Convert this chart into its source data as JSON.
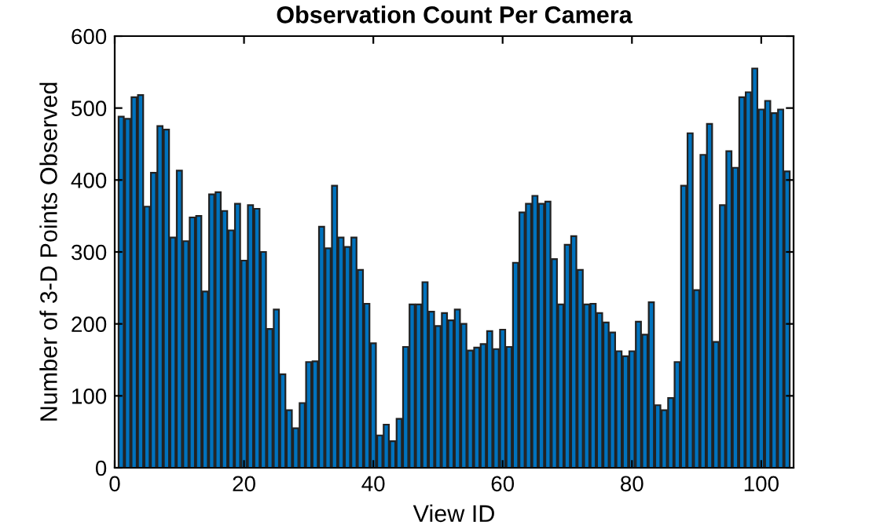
{
  "chart_data": {
    "type": "bar",
    "title": "Observation Count Per Camera",
    "xlabel": "View ID",
    "ylabel": "Number of 3-D Points Observed",
    "x": [
      1,
      2,
      3,
      4,
      5,
      6,
      7,
      8,
      9,
      10,
      11,
      12,
      13,
      14,
      15,
      16,
      17,
      18,
      19,
      20,
      21,
      22,
      23,
      24,
      25,
      26,
      27,
      28,
      29,
      30,
      31,
      32,
      33,
      34,
      35,
      36,
      37,
      38,
      39,
      40,
      41,
      42,
      43,
      44,
      45,
      46,
      47,
      48,
      49,
      50,
      51,
      52,
      53,
      54,
      55,
      56,
      57,
      58,
      59,
      60,
      61,
      62,
      63,
      64,
      65,
      66,
      67,
      68,
      69,
      70,
      71,
      72,
      73,
      74,
      75,
      76,
      77,
      78,
      79,
      80,
      81,
      82,
      83,
      84,
      85,
      86,
      87,
      88,
      89,
      90,
      91,
      92,
      93,
      94,
      95,
      96,
      97,
      98,
      99,
      100,
      101,
      102,
      103,
      104
    ],
    "values": [
      488,
      485,
      515,
      518,
      363,
      410,
      475,
      470,
      320,
      413,
      315,
      348,
      350,
      245,
      380,
      383,
      357,
      330,
      367,
      288,
      365,
      360,
      300,
      193,
      220,
      130,
      80,
      55,
      90,
      147,
      148,
      335,
      305,
      392,
      320,
      307,
      320,
      275,
      228,
      173,
      45,
      60,
      37,
      68,
      168,
      227,
      227,
      258,
      217,
      197,
      215,
      205,
      220,
      200,
      163,
      167,
      172,
      190,
      165,
      192,
      168,
      285,
      355,
      367,
      378,
      367,
      370,
      290,
      227,
      310,
      322,
      275,
      227,
      228,
      215,
      202,
      188,
      162,
      155,
      162,
      203,
      185,
      230,
      87,
      80,
      97,
      147,
      392,
      465,
      247,
      435,
      478,
      175,
      365,
      440,
      417,
      515,
      522,
      555,
      498,
      510,
      493,
      498,
      412
    ],
    "color": "#0072bd",
    "xlim": [
      0,
      105
    ],
    "ylim": [
      0,
      600
    ],
    "xticks": [
      0,
      20,
      40,
      60,
      80,
      100
    ],
    "yticks": [
      0,
      100,
      200,
      300,
      400,
      500,
      600
    ],
    "grid": false
  }
}
